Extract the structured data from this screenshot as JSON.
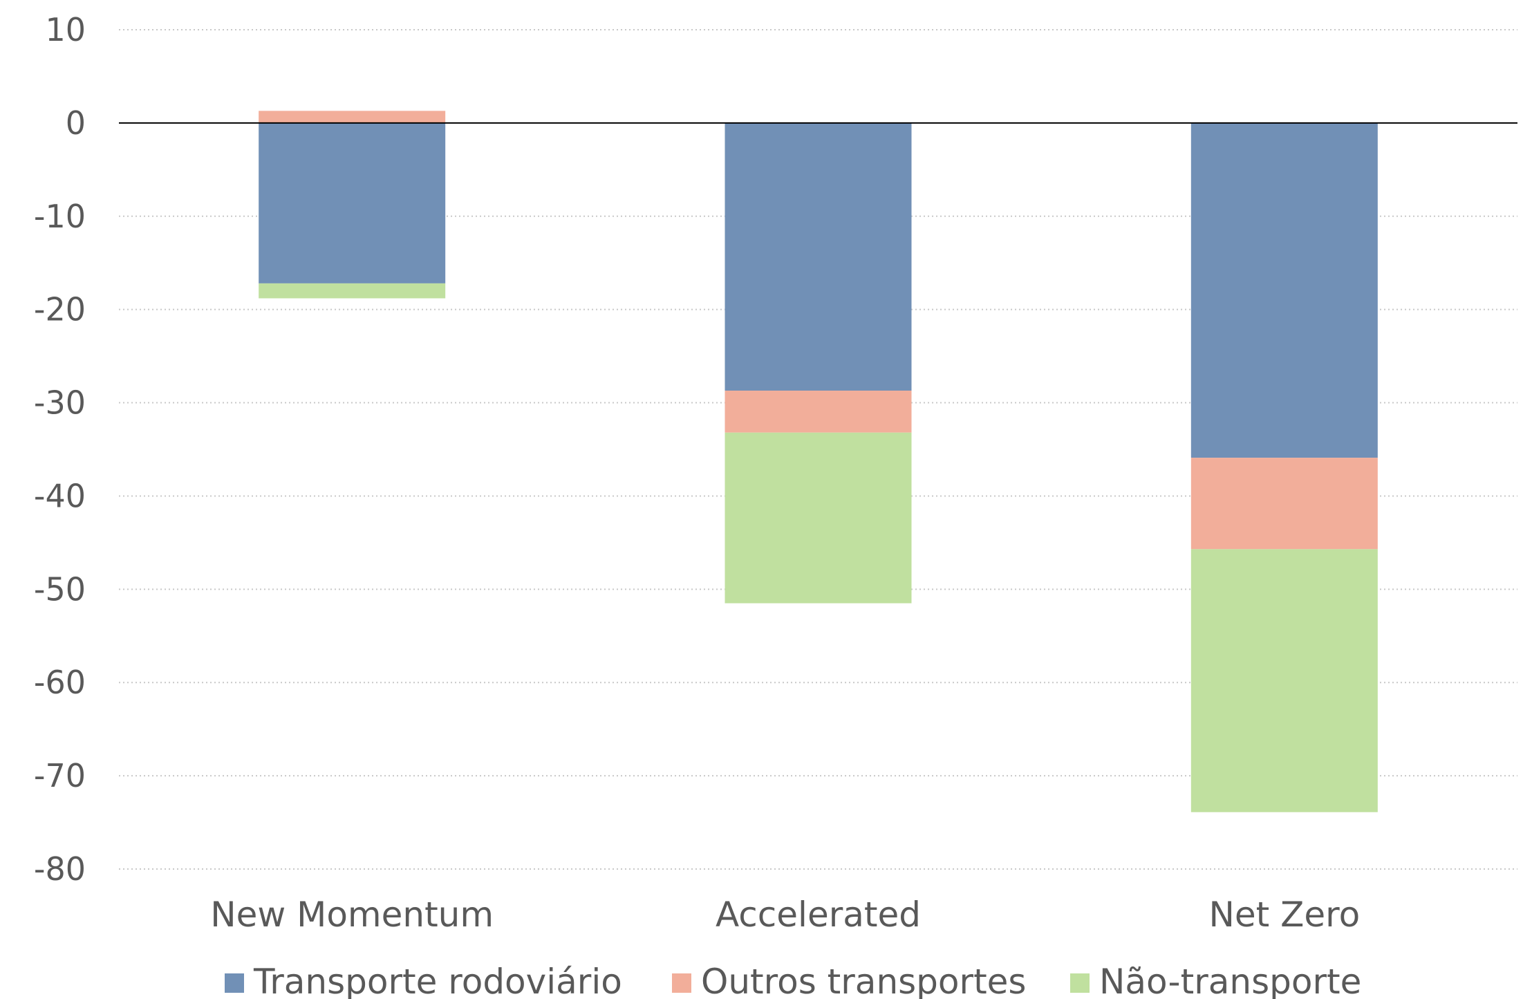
{
  "chart_data": {
    "type": "bar",
    "stacked": true,
    "categories": [
      "New Momentum",
      "Accelerated",
      "Net Zero"
    ],
    "series": [
      {
        "name": "Transporte rodoviário",
        "color": "#7190b6",
        "values": [
          -17.2,
          -28.7,
          -35.9
        ]
      },
      {
        "name": "Outros transportes",
        "color": "#f2ae9a",
        "values": [
          1.3,
          -4.5,
          -9.8
        ]
      },
      {
        "name": "Não-transporte",
        "color": "#c0e09f",
        "values": [
          -1.6,
          -18.3,
          -28.2
        ]
      }
    ],
    "ylim": [
      -80,
      10
    ],
    "yticks": [
      10,
      0,
      -10,
      -20,
      -30,
      -40,
      -50,
      -60,
      -70,
      -80
    ],
    "grid": true,
    "grid_style": "dotted",
    "legend_position": "bottom",
    "title": "",
    "xlabel": "",
    "ylabel": ""
  }
}
